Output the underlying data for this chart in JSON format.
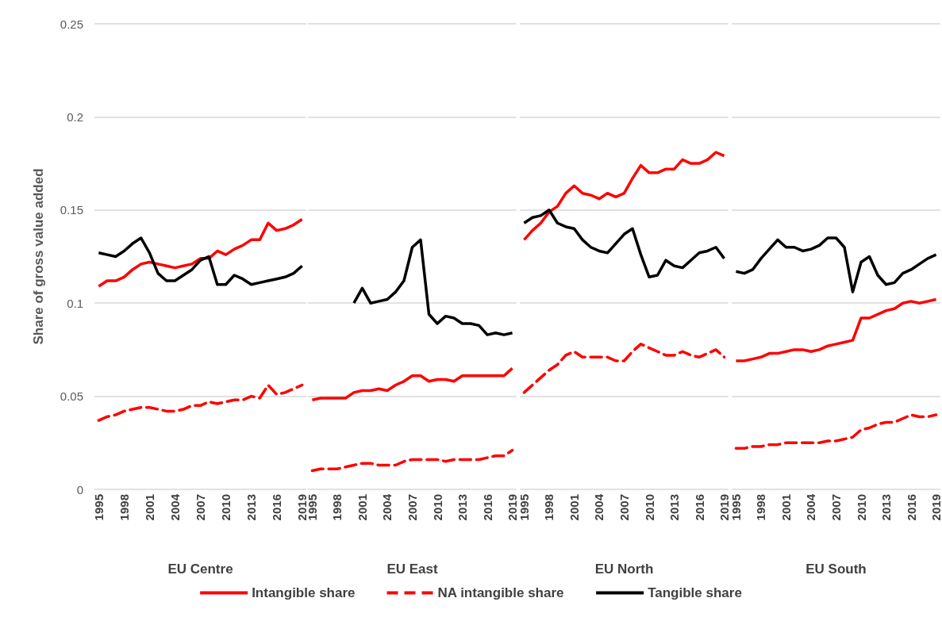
{
  "chart_data": [
    {
      "type": "line",
      "ylabel": "Share of gross value added",
      "xlabel": "EU Centre",
      "categories": [
        "1995",
        null,
        null,
        "1998",
        null,
        null,
        "2001",
        null,
        null,
        "2004",
        null,
        null,
        "2007",
        null,
        null,
        "2010",
        null,
        null,
        "2013",
        null,
        null,
        "2016",
        null,
        null,
        "2019"
      ],
      "ylim": [
        0,
        0.25
      ],
      "yticks": [
        0,
        0.05,
        0.1,
        0.15,
        0.2,
        0.25
      ],
      "grid": "y",
      "legend": "bottom",
      "marker": "none",
      "series": [
        {
          "name": "Intangible share",
          "color": "#ff0000",
          "line_style": "solid",
          "values": [
            0.109,
            0.112,
            0.112,
            0.114,
            0.118,
            0.121,
            0.122,
            0.121,
            0.12,
            0.119,
            0.12,
            0.121,
            0.124,
            0.124,
            0.128,
            0.126,
            0.129,
            0.131,
            0.134,
            0.134,
            0.143,
            0.139,
            0.14,
            0.142,
            0.145
          ]
        },
        {
          "name": "NA intangible share",
          "color": "#ff0000",
          "line_style": "dashed",
          "values": [
            0.037,
            0.039,
            0.04,
            0.042,
            0.043,
            0.044,
            0.044,
            0.043,
            0.042,
            0.042,
            0.043,
            0.045,
            0.045,
            0.047,
            0.046,
            0.047,
            0.048,
            0.048,
            0.05,
            0.049,
            0.056,
            0.051,
            0.052,
            0.054,
            0.056
          ]
        },
        {
          "name": "Tangible share",
          "color": "#000000",
          "line_style": "solid",
          "values": [
            0.127,
            0.126,
            0.125,
            0.128,
            0.132,
            0.135,
            0.127,
            0.116,
            0.112,
            0.112,
            0.115,
            0.118,
            0.123,
            0.125,
            0.11,
            0.11,
            0.115,
            0.113,
            0.11,
            0.111,
            0.112,
            0.113,
            0.114,
            0.116,
            0.12
          ]
        }
      ]
    },
    {
      "type": "line",
      "xlabel": "EU East",
      "categories": [
        "1995",
        null,
        null,
        "1998",
        null,
        null,
        "2001",
        null,
        null,
        "2004",
        null,
        null,
        "2007",
        null,
        null,
        "2010",
        null,
        null,
        "2013",
        null,
        null,
        "2016",
        null,
        null,
        "2019"
      ],
      "ylim": [
        0,
        0.25
      ],
      "yticks": [
        0,
        0.05,
        0.1,
        0.15,
        0.2,
        0.25
      ],
      "grid": "y",
      "tick_labels": "x",
      "marker": "none",
      "series": [
        {
          "color": "#ff0000",
          "line_style": "solid",
          "values": [
            0.048,
            0.049,
            0.049,
            0.049,
            0.049,
            0.052,
            0.053,
            0.053,
            0.054,
            0.053,
            0.056,
            0.058,
            0.061,
            0.061,
            0.058,
            0.059,
            0.059,
            0.058,
            0.061,
            0.061,
            0.061,
            0.061,
            0.061,
            0.061,
            0.065
          ]
        },
        {
          "color": "#ff0000",
          "line_style": "dashed",
          "values": [
            0.01,
            0.011,
            0.011,
            0.011,
            0.012,
            0.013,
            0.014,
            0.014,
            0.013,
            0.013,
            0.013,
            0.015,
            0.016,
            0.016,
            0.016,
            0.016,
            0.015,
            0.016,
            0.016,
            0.016,
            0.016,
            0.017,
            0.018,
            0.018,
            0.021
          ]
        },
        {
          "color": "#000000",
          "line_style": "solid",
          "values": [
            null,
            null,
            null,
            null,
            null,
            0.1,
            0.108,
            0.1,
            0.101,
            0.102,
            0.106,
            0.112,
            0.13,
            0.134,
            0.094,
            0.089,
            0.093,
            0.092,
            0.089,
            0.089,
            0.088,
            0.083,
            0.084,
            0.083,
            0.084
          ]
        }
      ]
    },
    {
      "type": "line",
      "xlabel": "EU North",
      "categories": [
        "1995",
        null,
        null,
        "1998",
        null,
        null,
        "2001",
        null,
        null,
        "2004",
        null,
        null,
        "2007",
        null,
        null,
        "2010",
        null,
        null,
        "2013",
        null,
        null,
        "2016",
        null,
        null,
        "2019"
      ],
      "ylim": [
        0,
        0.25
      ],
      "yticks": [
        0,
        0.05,
        0.1,
        0.15,
        0.2,
        0.25
      ],
      "grid": "y",
      "tick_labels": "x",
      "marker": "none",
      "series": [
        {
          "color": "#ff0000",
          "line_style": "solid",
          "values": [
            0.134,
            0.139,
            0.143,
            0.149,
            0.152,
            0.159,
            0.163,
            0.159,
            0.158,
            0.156,
            0.159,
            0.157,
            0.159,
            0.167,
            0.174,
            0.17,
            0.17,
            0.172,
            0.172,
            0.177,
            0.175,
            0.175,
            0.177,
            0.181,
            0.179
          ]
        },
        {
          "color": "#ff0000",
          "line_style": "dashed",
          "values": [
            0.052,
            0.056,
            0.06,
            0.064,
            0.067,
            0.072,
            0.074,
            0.071,
            0.071,
            0.071,
            0.071,
            0.069,
            0.069,
            0.074,
            0.078,
            0.076,
            0.074,
            0.072,
            0.072,
            0.074,
            0.072,
            0.071,
            0.073,
            0.075,
            0.071
          ]
        },
        {
          "color": "#000000",
          "line_style": "solid",
          "values": [
            0.143,
            0.146,
            0.147,
            0.15,
            0.143,
            0.141,
            0.14,
            0.134,
            0.13,
            0.128,
            0.127,
            0.132,
            0.137,
            0.14,
            0.126,
            0.114,
            0.115,
            0.123,
            0.12,
            0.119,
            0.123,
            0.127,
            0.128,
            0.13,
            0.124
          ]
        }
      ]
    },
    {
      "type": "line",
      "xlabel": "EU South",
      "categories": [
        "1995",
        null,
        null,
        "1998",
        null,
        null,
        "2001",
        null,
        null,
        "2004",
        null,
        null,
        "2007",
        null,
        null,
        "2010",
        null,
        null,
        "2013",
        null,
        null,
        "2016",
        null,
        null,
        "2019"
      ],
      "ylim": [
        0,
        0.25
      ],
      "yticks": [
        0,
        0.05,
        0.1,
        0.15,
        0.2,
        0.25
      ],
      "grid": "y",
      "tick_labels": "x",
      "marker": "none",
      "series": [
        {
          "color": "#ff0000",
          "line_style": "solid",
          "values": [
            0.069,
            0.069,
            0.07,
            0.071,
            0.073,
            0.073,
            0.074,
            0.075,
            0.075,
            0.074,
            0.075,
            0.077,
            0.078,
            0.079,
            0.08,
            0.092,
            0.092,
            0.094,
            0.096,
            0.097,
            0.1,
            0.101,
            0.1,
            0.101,
            0.102
          ]
        },
        {
          "color": "#ff0000",
          "line_style": "dashed",
          "values": [
            0.022,
            0.022,
            0.023,
            0.023,
            0.024,
            0.024,
            0.025,
            0.025,
            0.025,
            0.025,
            0.025,
            0.026,
            0.026,
            0.027,
            0.028,
            0.032,
            0.033,
            0.035,
            0.036,
            0.036,
            0.038,
            0.04,
            0.039,
            0.039,
            0.04
          ]
        },
        {
          "color": "#000000",
          "line_style": "solid",
          "values": [
            0.117,
            0.116,
            0.118,
            0.124,
            0.129,
            0.134,
            0.13,
            0.13,
            0.128,
            0.129,
            0.131,
            0.135,
            0.135,
            0.13,
            0.106,
            0.122,
            0.125,
            0.115,
            0.11,
            0.111,
            0.116,
            0.118,
            0.121,
            0.124,
            0.126
          ]
        }
      ]
    }
  ]
}
